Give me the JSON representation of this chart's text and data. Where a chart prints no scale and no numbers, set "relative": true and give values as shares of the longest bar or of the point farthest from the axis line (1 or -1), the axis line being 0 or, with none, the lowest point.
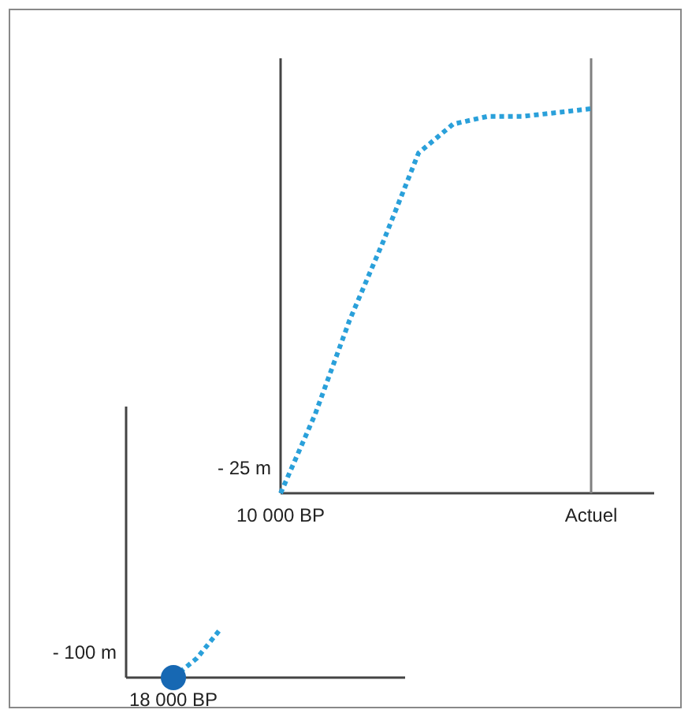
{
  "chart_data": [
    {
      "type": "line",
      "relative": true,
      "ylabel": "- 25 m",
      "categories": [
        "10 000 BP",
        null,
        null,
        null,
        null,
        null,
        null,
        null,
        null,
        "Actuel",
        null,
        null
      ],
      "series": [
        {
          "color": "#2aa0da",
          "line_style": "dotted",
          "marker": "none",
          "values": [
            0,
            0.205,
            0.45,
            0.66,
            0.885,
            0.96,
            0.98,
            0.98,
            0.99,
            1,
            null,
            null
          ]
        }
      ],
      "ref_lines": [
        {
          "axis": "x",
          "value": "Actuel",
          "color": "#808080"
        }
      ]
    },
    {
      "type": "line",
      "relative": true,
      "ylabel": "- 100 m",
      "categories": [
        null,
        null,
        null,
        null,
        null,
        null,
        null,
        null,
        null,
        null,
        null
      ],
      "annotations": [
        "18 000 BP"
      ],
      "series": [
        {
          "color": "#2aa0da",
          "line_style": "dotted",
          "marker": "none",
          "values": [
            0,
            0.4,
            1,
            null,
            null,
            null,
            null,
            null,
            null,
            null,
            null
          ]
        }
      ]
    }
  ]
}
